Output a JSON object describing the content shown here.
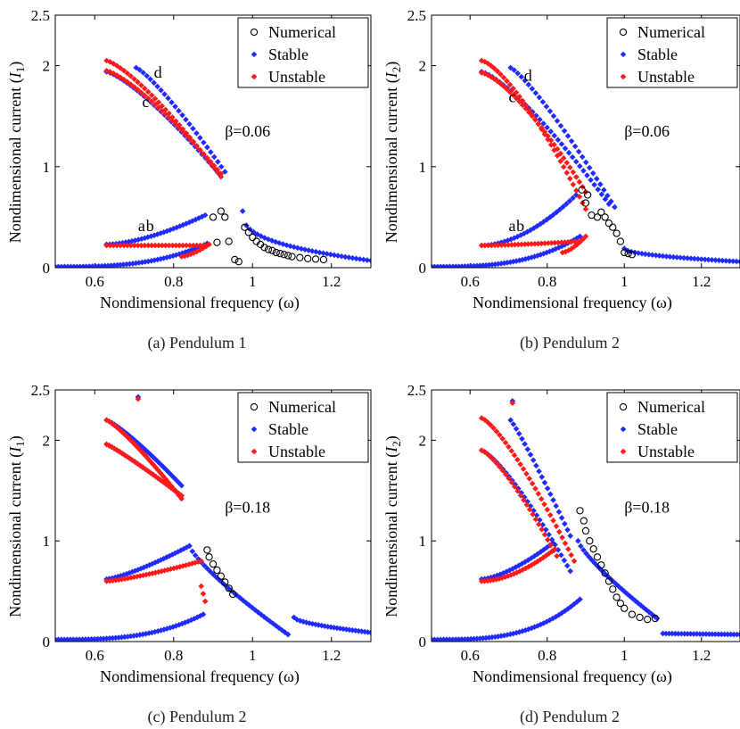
{
  "palette": {
    "numerical": "#000000",
    "stable": "#1f2bff",
    "unstable": "#ff1a1a"
  },
  "chart_data": [
    {
      "type": "scatter",
      "caption": "(a) Pendulum 1",
      "xlabel": "Nondimensional frequency (ω)",
      "ylabel_main": "Nondimensional current (",
      "ylabel_sym": "I",
      "ylabel_sub": "1",
      "ylabel_end": ")",
      "xlim": [
        0.5,
        1.3
      ],
      "ylim": [
        0,
        2.5
      ],
      "xticks": [
        {
          "v": 0.6,
          "t": "0.6"
        },
        {
          "v": 0.8,
          "t": "0.8"
        },
        {
          "v": 1.0,
          "t": "1"
        },
        {
          "v": 1.2,
          "t": "1.2"
        }
      ],
      "yticks": [
        {
          "v": 0,
          "t": "0"
        },
        {
          "v": 1,
          "t": "1"
        },
        {
          "v": 2,
          "t": "2"
        },
        {
          "v": 2.5,
          "t": "2.5"
        }
      ],
      "beta_label": "β=0.06",
      "beta_pos": [
        0.93,
        1.3
      ],
      "legend": [
        {
          "key": "numerical",
          "label": "Numerical"
        },
        {
          "key": "stable",
          "label": "Stable"
        },
        {
          "key": "unstable",
          "label": "Unstable"
        }
      ],
      "annotations": [
        {
          "text": "a",
          "x": 0.71,
          "y": 0.36
        },
        {
          "text": "b",
          "x": 0.73,
          "y": 0.36
        },
        {
          "text": "c",
          "x": 0.72,
          "y": 1.59
        },
        {
          "text": "d",
          "x": 0.75,
          "y": 1.88
        }
      ],
      "stable_curves": [
        {
          "x0": 0.5,
          "x1": 0.885,
          "y0": 0.01,
          "y1": 0.24,
          "shape": 3,
          "n": 50
        },
        {
          "x0": 0.63,
          "x1": 0.88,
          "y0": 0.23,
          "y1": 0.52,
          "shape": 1.6,
          "n": 32
        },
        {
          "x0": 0.63,
          "x1": 0.915,
          "y0": 1.94,
          "y1": 0.93,
          "shape": 1.3,
          "n": 34
        },
        {
          "x0": 0.705,
          "x1": 0.93,
          "y0": 1.98,
          "y1": 0.95,
          "shape": 1.2,
          "n": 26
        },
        {
          "x0": 0.975,
          "x1": 1.3,
          "y0": 0.56,
          "y1": 0.07,
          "shape": 0.35,
          "n": 36
        }
      ],
      "unstable_curves": [
        {
          "x0": 0.63,
          "x1": 0.885,
          "y0": 0.22,
          "y1": 0.22,
          "shape": 1,
          "n": 30
        },
        {
          "x0": 0.82,
          "x1": 0.89,
          "y0": 0.11,
          "y1": 0.23,
          "shape": 1.5,
          "n": 10
        },
        {
          "x0": 0.63,
          "x1": 0.92,
          "y0": 2.05,
          "y1": 0.9,
          "shape": 1.3,
          "n": 34
        },
        {
          "x0": 0.63,
          "x1": 0.92,
          "y0": 1.95,
          "y1": 0.93,
          "shape": 1.3,
          "n": 34
        }
      ],
      "numerical_points": [
        [
          0.9,
          0.5
        ],
        [
          0.92,
          0.56
        ],
        [
          0.93,
          0.5
        ],
        [
          0.91,
          0.25
        ],
        [
          0.94,
          0.26
        ],
        [
          0.955,
          0.08
        ],
        [
          0.965,
          0.06
        ],
        [
          0.98,
          0.4
        ],
        [
          0.99,
          0.35
        ],
        [
          1.0,
          0.3
        ],
        [
          1.01,
          0.26
        ],
        [
          1.02,
          0.23
        ],
        [
          1.03,
          0.2
        ],
        [
          1.04,
          0.18
        ],
        [
          1.05,
          0.17
        ],
        [
          1.06,
          0.15
        ],
        [
          1.07,
          0.14
        ],
        [
          1.08,
          0.13
        ],
        [
          1.09,
          0.12
        ],
        [
          1.1,
          0.11
        ],
        [
          1.12,
          0.1
        ],
        [
          1.14,
          0.09
        ],
        [
          1.16,
          0.085
        ],
        [
          1.18,
          0.08
        ]
      ]
    },
    {
      "type": "scatter",
      "caption": "(b) Pendulum 2",
      "xlabel": "Nondimensional frequency (ω)",
      "ylabel_main": "Nondimensional current (",
      "ylabel_sym": "I",
      "ylabel_sub": "2",
      "ylabel_end": ")",
      "xlim": [
        0.5,
        1.3
      ],
      "ylim": [
        0,
        2.5
      ],
      "xticks": [
        {
          "v": 0.6,
          "t": "0.6"
        },
        {
          "v": 0.8,
          "t": "0.8"
        },
        {
          "v": 1.0,
          "t": "1"
        },
        {
          "v": 1.2,
          "t": "1.2"
        }
      ],
      "yticks": [
        {
          "v": 0,
          "t": "0"
        },
        {
          "v": 1,
          "t": "1"
        },
        {
          "v": 2,
          "t": "2"
        },
        {
          "v": 2.5,
          "t": "2.5"
        }
      ],
      "beta_label": "β=0.06",
      "beta_pos": [
        1.0,
        1.3
      ],
      "legend": [
        {
          "key": "numerical",
          "label": "Numerical"
        },
        {
          "key": "stable",
          "label": "Stable"
        },
        {
          "key": "unstable",
          "label": "Unstable"
        }
      ],
      "annotations": [
        {
          "text": "a",
          "x": 0.7,
          "y": 0.36
        },
        {
          "text": "b",
          "x": 0.72,
          "y": 0.36
        },
        {
          "text": "c",
          "x": 0.7,
          "y": 1.64
        },
        {
          "text": "d",
          "x": 0.74,
          "y": 1.85
        }
      ],
      "stable_curves": [
        {
          "x0": 0.5,
          "x1": 0.885,
          "y0": 0.01,
          "y1": 0.31,
          "shape": 3,
          "n": 50
        },
        {
          "x0": 0.63,
          "x1": 0.875,
          "y0": 0.22,
          "y1": 0.72,
          "shape": 1.8,
          "n": 30
        },
        {
          "x0": 0.63,
          "x1": 0.96,
          "y0": 1.94,
          "y1": 0.63,
          "shape": 1.3,
          "n": 36
        },
        {
          "x0": 0.705,
          "x1": 0.975,
          "y0": 1.98,
          "y1": 0.6,
          "shape": 1.2,
          "n": 30
        },
        {
          "x0": 1.0,
          "x1": 1.3,
          "y0": 0.19,
          "y1": 0.06,
          "shape": 0.5,
          "n": 34
        }
      ],
      "unstable_curves": [
        {
          "x0": 0.63,
          "x1": 0.88,
          "y0": 0.22,
          "y1": 0.26,
          "shape": 1.5,
          "n": 30
        },
        {
          "x0": 0.84,
          "x1": 0.9,
          "y0": 0.15,
          "y1": 0.31,
          "shape": 1.5,
          "n": 9
        },
        {
          "x0": 0.63,
          "x1": 0.9,
          "y0": 2.05,
          "y1": 0.58,
          "shape": 1.4,
          "n": 34
        },
        {
          "x0": 0.63,
          "x1": 0.9,
          "y0": 1.93,
          "y1": 0.75,
          "shape": 1.4,
          "n": 34
        }
      ],
      "numerical_points": [
        [
          0.89,
          0.77
        ],
        [
          0.9,
          0.64
        ],
        [
          0.905,
          0.72
        ],
        [
          0.915,
          0.52
        ],
        [
          0.93,
          0.5
        ],
        [
          0.94,
          0.55
        ],
        [
          0.95,
          0.5
        ],
        [
          0.96,
          0.44
        ],
        [
          0.97,
          0.4
        ],
        [
          0.98,
          0.34
        ],
        [
          0.99,
          0.26
        ],
        [
          1.0,
          0.15
        ],
        [
          1.01,
          0.14
        ],
        [
          1.02,
          0.13
        ]
      ]
    },
    {
      "type": "scatter",
      "caption": "(c) Pendulum 2",
      "xlabel": "Nondimensional frequency (ω)",
      "ylabel_main": "Nondimensional current (",
      "ylabel_sym": "I",
      "ylabel_sub": "1",
      "ylabel_end": ")",
      "xlim": [
        0.5,
        1.3
      ],
      "ylim": [
        0,
        2.5
      ],
      "xticks": [
        {
          "v": 0.6,
          "t": "0.6"
        },
        {
          "v": 0.8,
          "t": "0.8"
        },
        {
          "v": 1.0,
          "t": "1"
        },
        {
          "v": 1.2,
          "t": "1.2"
        }
      ],
      "yticks": [
        {
          "v": 0,
          "t": "0"
        },
        {
          "v": 1,
          "t": "1"
        },
        {
          "v": 2,
          "t": "2"
        },
        {
          "v": 2.5,
          "t": "2.5"
        }
      ],
      "beta_label": "β=0.18",
      "beta_pos": [
        0.93,
        1.28
      ],
      "legend": [
        {
          "key": "numerical",
          "label": "Numerical"
        },
        {
          "key": "stable",
          "label": "Stable"
        },
        {
          "key": "unstable",
          "label": "Unstable"
        }
      ],
      "annotations": [],
      "stable_curves": [
        {
          "x0": 0.5,
          "x1": 0.875,
          "y0": 0.02,
          "y1": 0.27,
          "shape": 3,
          "n": 50
        },
        {
          "x0": 0.63,
          "x1": 0.84,
          "y0": 0.62,
          "y1": 0.95,
          "shape": 1.3,
          "n": 30
        },
        {
          "x0": 0.84,
          "x1": 1.09,
          "y0": 0.95,
          "y1": 0.07,
          "shape": 0.8,
          "n": 34
        },
        {
          "x0": 0.63,
          "x1": 0.82,
          "y0": 1.96,
          "y1": 1.45,
          "shape": 1.1,
          "n": 30
        },
        {
          "x0": 0.63,
          "x1": 0.82,
          "y0": 2.2,
          "y1": 1.55,
          "shape": 1.2,
          "n": 30
        },
        {
          "x0": 1.105,
          "x1": 1.3,
          "y0": 0.24,
          "y1": 0.09,
          "shape": 0.6,
          "n": 26
        }
      ],
      "unstable_curves": [
        {
          "x0": 0.63,
          "x1": 0.87,
          "y0": 0.6,
          "y1": 0.8,
          "shape": 1.3,
          "n": 32
        },
        {
          "x0": 0.63,
          "x1": 0.82,
          "y0": 2.2,
          "y1": 1.42,
          "shape": 1.2,
          "n": 30
        },
        {
          "x0": 0.63,
          "x1": 0.82,
          "y0": 1.96,
          "y1": 1.45,
          "shape": 1.1,
          "n": 30
        },
        {
          "x0": 0.87,
          "x1": 0.88,
          "y0": 0.55,
          "y1": 0.4,
          "shape": 1,
          "n": 3
        }
      ],
      "extra_points": [
        {
          "key": "stable",
          "x": 0.71,
          "y": 2.43
        },
        {
          "key": "unstable",
          "x": 0.71,
          "y": 2.41
        }
      ],
      "numerical_points": [
        [
          0.885,
          0.91
        ],
        [
          0.89,
          0.84
        ],
        [
          0.9,
          0.77
        ],
        [
          0.91,
          0.71
        ],
        [
          0.92,
          0.65
        ],
        [
          0.93,
          0.59
        ],
        [
          0.94,
          0.53
        ],
        [
          0.95,
          0.47
        ]
      ]
    },
    {
      "type": "scatter",
      "caption": "(d) Pendulum 2",
      "xlabel": "Nondimensional frequency (ω)",
      "ylabel_main": "Nondimensional current (",
      "ylabel_sym": "I",
      "ylabel_sub": "2",
      "ylabel_end": ")",
      "xlim": [
        0.5,
        1.3
      ],
      "ylim": [
        0,
        2.5
      ],
      "xticks": [
        {
          "v": 0.6,
          "t": "0.6"
        },
        {
          "v": 0.8,
          "t": "0.8"
        },
        {
          "v": 1.0,
          "t": "1"
        },
        {
          "v": 1.2,
          "t": "1.2"
        }
      ],
      "yticks": [
        {
          "v": 0,
          "t": "0"
        },
        {
          "v": 1,
          "t": "1"
        },
        {
          "v": 2,
          "t": "2"
        },
        {
          "v": 2.5,
          "t": "2.5"
        }
      ],
      "beta_label": "β=0.18",
      "beta_pos": [
        1.0,
        1.28
      ],
      "legend": [
        {
          "key": "numerical",
          "label": "Numerical"
        },
        {
          "key": "stable",
          "label": "Stable"
        },
        {
          "key": "unstable",
          "label": "Unstable"
        }
      ],
      "annotations": [],
      "stable_curves": [
        {
          "x0": 0.5,
          "x1": 0.885,
          "y0": 0.02,
          "y1": 0.42,
          "shape": 3.2,
          "n": 50
        },
        {
          "x0": 0.63,
          "x1": 0.815,
          "y0": 0.62,
          "y1": 0.98,
          "shape": 1.5,
          "n": 24
        },
        {
          "x0": 0.63,
          "x1": 0.86,
          "y0": 1.9,
          "y1": 0.7,
          "shape": 1.3,
          "n": 30
        },
        {
          "x0": 0.705,
          "x1": 0.86,
          "y0": 2.2,
          "y1": 1.05,
          "shape": 1.1,
          "n": 22
        },
        {
          "x0": 0.88,
          "x1": 1.085,
          "y0": 1.0,
          "y1": 0.23,
          "shape": 0.8,
          "n": 30
        },
        {
          "x0": 1.1,
          "x1": 1.3,
          "y0": 0.08,
          "y1": 0.07,
          "shape": 1,
          "n": 26
        }
      ],
      "unstable_curves": [
        {
          "x0": 0.63,
          "x1": 0.82,
          "y0": 0.6,
          "y1": 0.92,
          "shape": 1.8,
          "n": 26
        },
        {
          "x0": 0.63,
          "x1": 0.87,
          "y0": 2.22,
          "y1": 0.8,
          "shape": 1.3,
          "n": 32
        },
        {
          "x0": 0.63,
          "x1": 0.825,
          "y0": 1.9,
          "y1": 0.85,
          "shape": 1.3,
          "n": 26
        }
      ],
      "extra_points": [
        {
          "key": "stable",
          "x": 0.71,
          "y": 2.39
        },
        {
          "key": "unstable",
          "x": 0.71,
          "y": 2.37
        }
      ],
      "numerical_points": [
        [
          0.885,
          1.3
        ],
        [
          0.895,
          1.2
        ],
        [
          0.9,
          1.1
        ],
        [
          0.91,
          1.0
        ],
        [
          0.92,
          0.92
        ],
        [
          0.93,
          0.84
        ],
        [
          0.94,
          0.76
        ],
        [
          0.95,
          0.68
        ],
        [
          0.96,
          0.6
        ],
        [
          0.97,
          0.52
        ],
        [
          0.98,
          0.44
        ],
        [
          0.99,
          0.38
        ],
        [
          1.0,
          0.33
        ],
        [
          1.02,
          0.27
        ],
        [
          1.04,
          0.24
        ],
        [
          1.06,
          0.22
        ],
        [
          1.08,
          0.23
        ]
      ]
    }
  ]
}
